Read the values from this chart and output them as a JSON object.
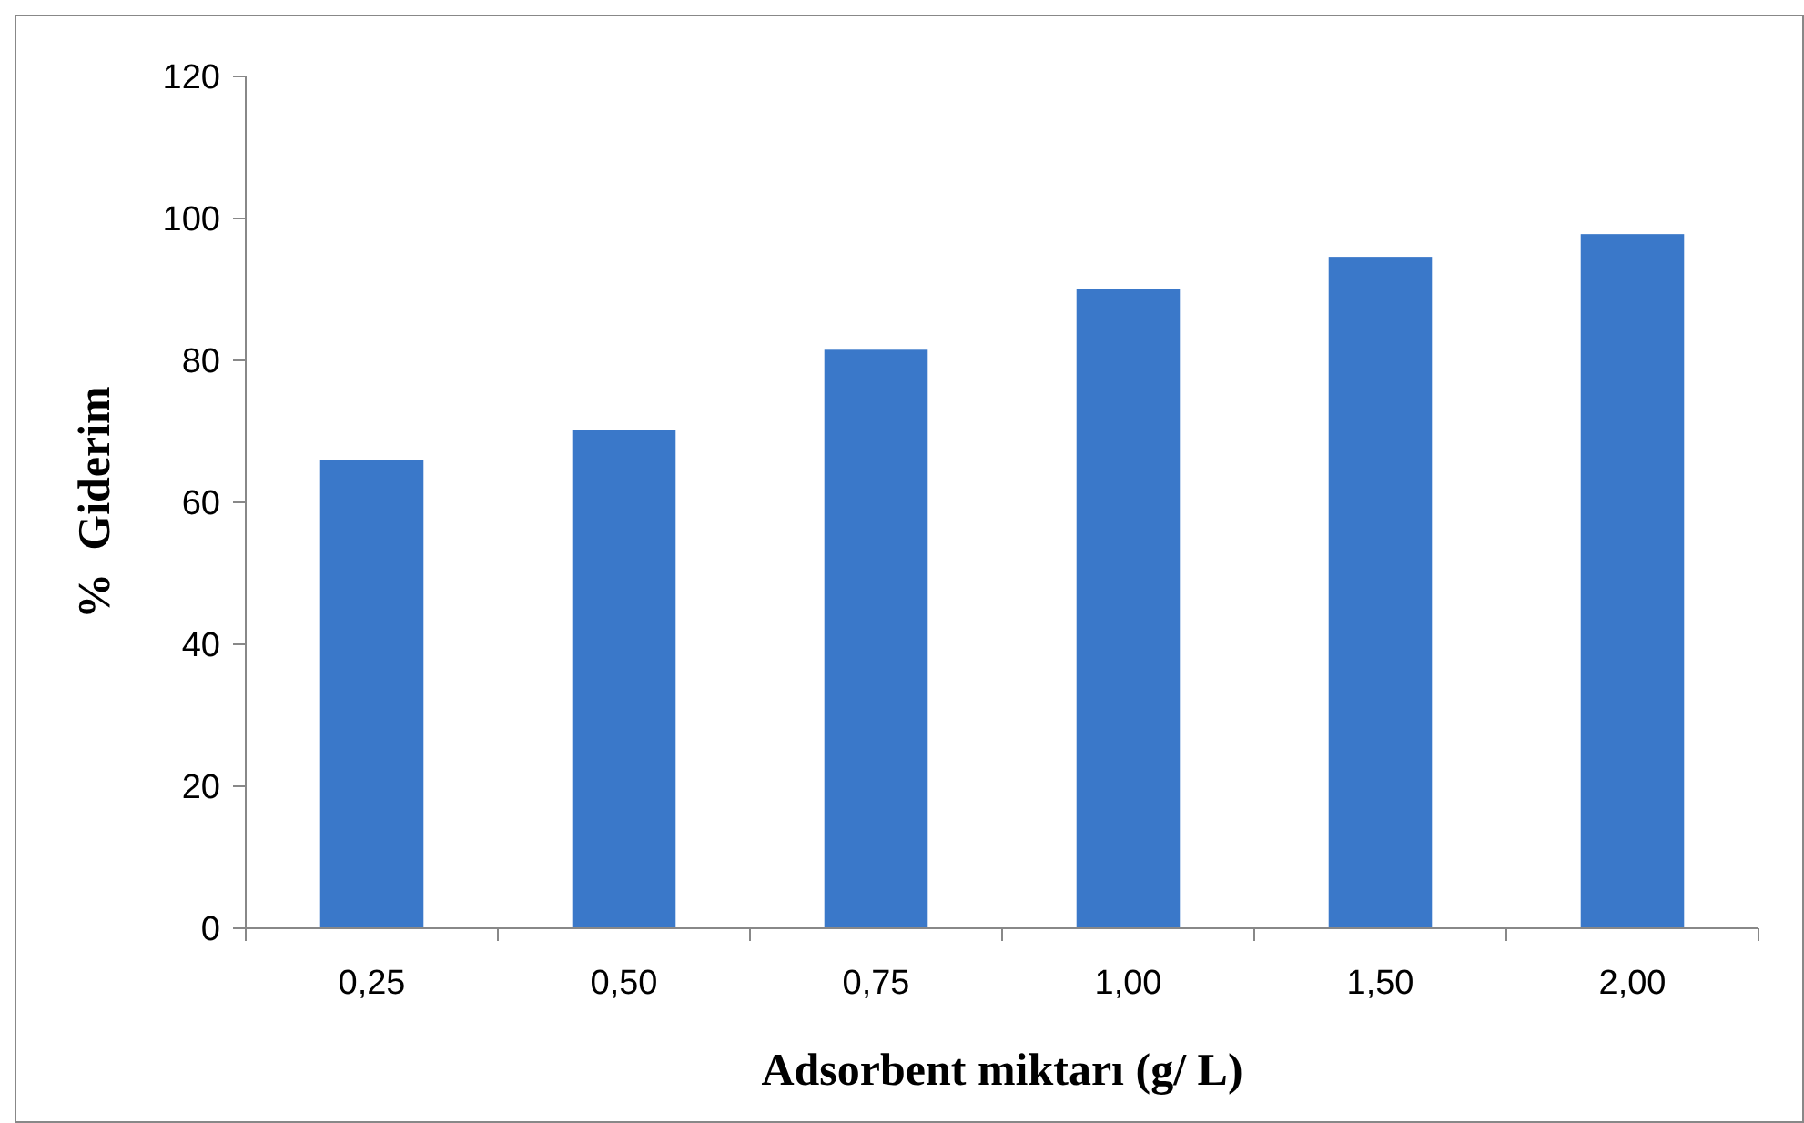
{
  "chart_data": {
    "type": "bar",
    "xlabel": "Adsorbent miktarı (g/ L)",
    "ylabel": "%  Giderim",
    "categories": [
      "0,25",
      "0,50",
      "0,75",
      "1,00",
      "1,50",
      "2,00"
    ],
    "values": [
      66,
      70.2,
      81.5,
      90,
      94.6,
      97.8
    ],
    "color": "#3a78c9",
    "ylim": [
      0,
      120
    ],
    "yticks": [
      0,
      20,
      40,
      60,
      80,
      100,
      120
    ],
    "grid": false
  }
}
